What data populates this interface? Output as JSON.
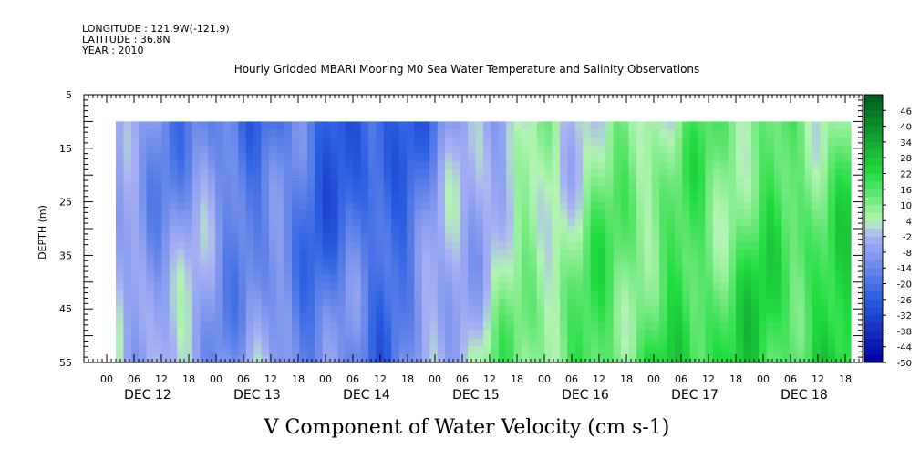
{
  "header": {
    "longitude": "LONGITUDE : 121.9W(-121.9)",
    "latitude": "LATITUDE : 36.8N",
    "year": "YEAR : 2010"
  },
  "chart_data": {
    "type": "heatmap",
    "title": "Hourly Gridded MBARI Mooring M0 Sea Water Temperature and Salinity Observations",
    "xlabel": "V Component of Water Velocity (cm s-1)",
    "ylabel": "DEPTH (m)",
    "y_ticks": [
      5,
      15,
      25,
      35,
      45,
      55
    ],
    "ylim": [
      55,
      5
    ],
    "data_depth_range": [
      10,
      55
    ],
    "x_hour_tick_labels": [
      "00",
      "06",
      "12",
      "18",
      "00",
      "06",
      "12",
      "18",
      "00",
      "06",
      "12",
      "18",
      "00",
      "06",
      "12",
      "18",
      "00",
      "06",
      "12",
      "18",
      "00",
      "06",
      "12",
      "18",
      "00",
      "06",
      "12",
      "18"
    ],
    "x_day_labels": [
      "DEC 12",
      "DEC 13",
      "DEC 14",
      "DEC 15",
      "DEC 16",
      "DEC 17",
      "DEC 18"
    ],
    "colorbar_labels": [
      "46",
      "40",
      "34",
      "28",
      "22",
      "16",
      "10",
      "4",
      "-2",
      "-8",
      "-14",
      "-20",
      "-26",
      "-32",
      "-38",
      "-44",
      "-50"
    ],
    "colorbar_range": [
      -50,
      52
    ],
    "colorbar_step": 3,
    "palette": {
      "strong_negative": "#0000a0",
      "mid_negative": "#2a5ee0",
      "weak_negative": "#a8b2f4",
      "weak_positive": "#b4f4b4",
      "mid_positive": "#22dc40",
      "strong_positive": "#005a1e"
    },
    "velocity_profile_days": [
      "DEC 12",
      "DEC 13",
      "DEC 14",
      "DEC 15",
      "DEC 16",
      "DEC 17",
      "DEC 18"
    ],
    "velocity_mean_by_day": [
      -12,
      -20,
      -28,
      -4,
      6,
      10,
      12
    ]
  }
}
